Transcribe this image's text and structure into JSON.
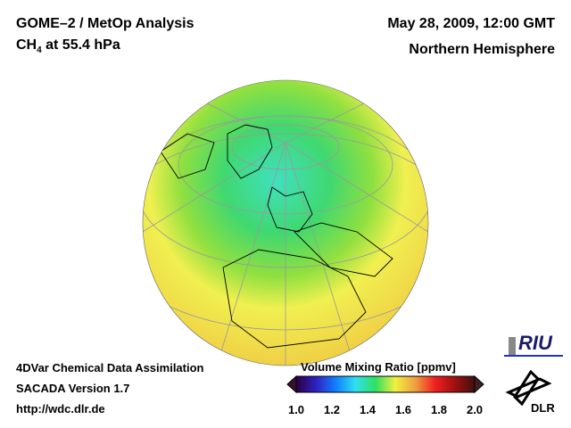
{
  "header": {
    "title": "GOME–2 / MetOp Analysis",
    "species": "CH",
    "species_sub": "4",
    "level": " at 55.4 hPa",
    "datetime": "May 28, 2009, 12:00 GMT",
    "region": "Northern Hemisphere"
  },
  "footer": {
    "line1": "4DVar Chemical Data Assimilation",
    "line2": "SACADA Version 1.7",
    "url": "http://wdc.dlr.de"
  },
  "colorbar": {
    "title": "Volume Mixing Ratio [ppmv]",
    "ticks": [
      "1.0",
      "1.2",
      "1.4",
      "1.6",
      "1.8",
      "2.0"
    ],
    "range": [
      1.0,
      2.0
    ],
    "colors": [
      "#2a0040",
      "#3020c0",
      "#1080ff",
      "#30e0f0",
      "#30e060",
      "#f0f040",
      "#f0a040",
      "#f02020",
      "#a01010",
      "#401010"
    ]
  },
  "logos": {
    "riu": "RIU",
    "dlr": "DLR"
  }
}
